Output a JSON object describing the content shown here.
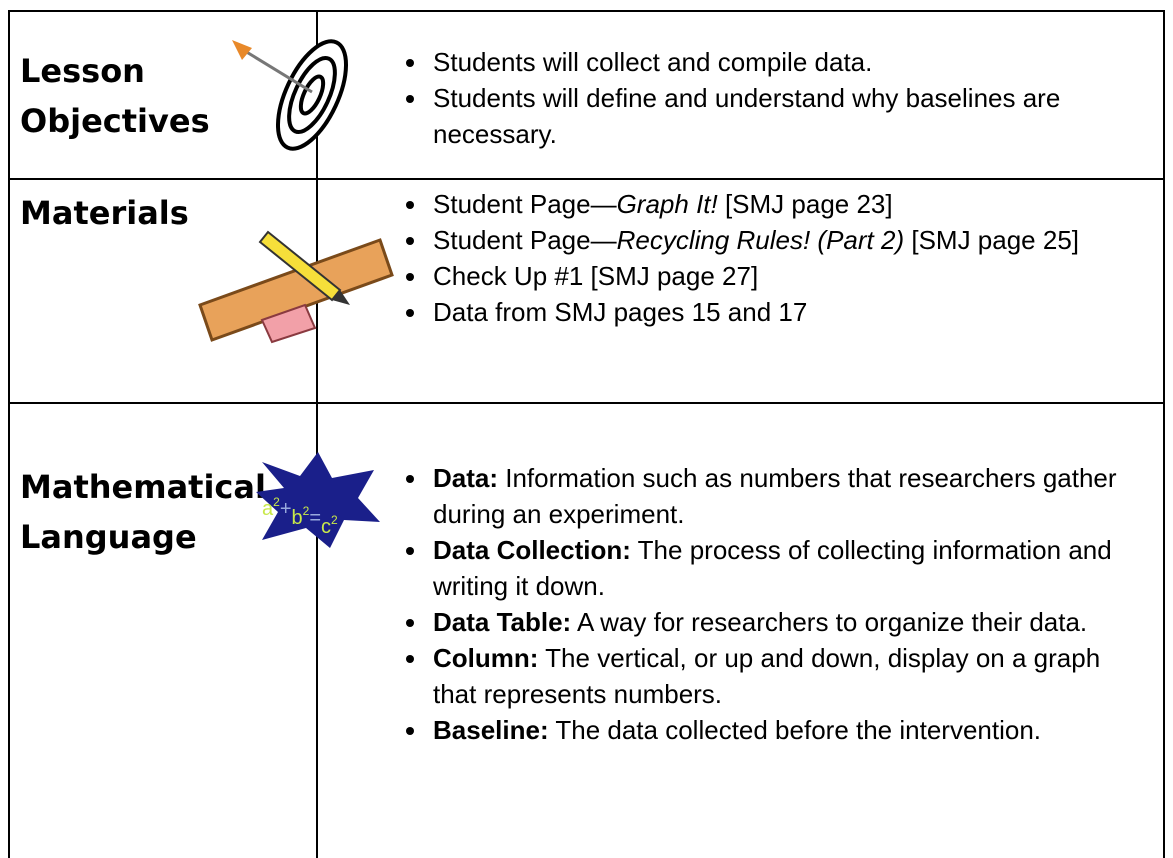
{
  "rows": [
    {
      "label": "Lesson Objectives",
      "items": [
        "Students will collect and compile data.",
        "Students will define and understand why baselines are necessary."
      ]
    },
    {
      "label": "Materials",
      "items": [
        {
          "text": "Student Page—",
          "title": "Graph It!",
          "suffix": " [SMJ page 23]"
        },
        {
          "text": "Student Page—",
          "title": "Recycling Rules! (Part 2)",
          "suffix": " [SMJ page 25]"
        },
        "Check Up #1 [SMJ page 27]",
        "Data from SMJ pages 15 and 17"
      ]
    },
    {
      "label": "Mathematical Language",
      "icon_formula": [
        "a",
        "2",
        "+",
        "b",
        "2",
        "=",
        "c",
        "2"
      ],
      "items": [
        {
          "term": "Data:",
          "definition": " Information such as numbers that researchers gather during an experiment."
        },
        {
          "term": "Data Collection:",
          "definition": " The process of collecting information and writing it down."
        },
        {
          "term": "Data Table:",
          "definition": " A way for researchers to organize their data."
        },
        {
          "term": "Column:",
          "definition": " The vertical, or up and down, display on a graph that represents numbers."
        },
        {
          "term": "Baseline:",
          "definition": " The data collected before the intervention."
        }
      ]
    }
  ]
}
